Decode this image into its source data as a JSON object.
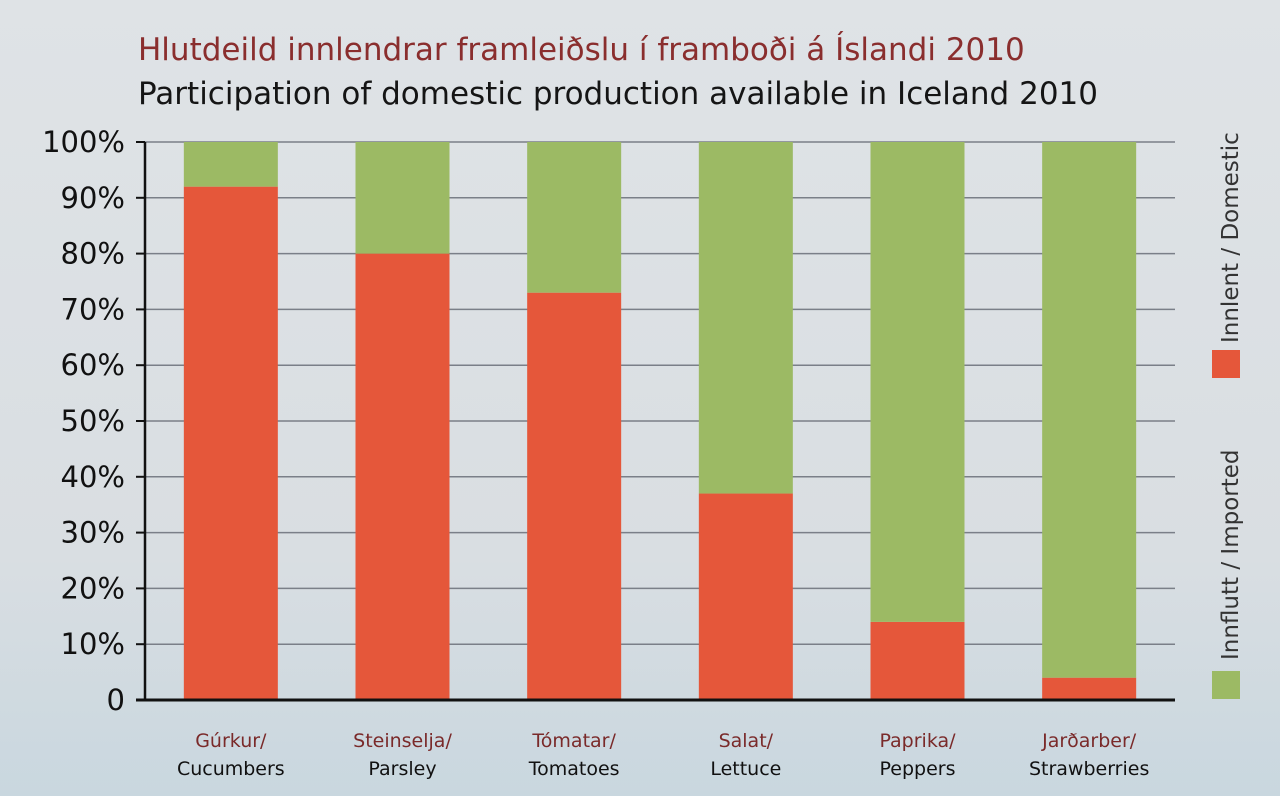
{
  "colors": {
    "domestic": "#e5573a",
    "imported": "#9cba64",
    "title_primary": "#8a2e2e",
    "title_secondary": "#151515",
    "category_primary": "#7a2a2a",
    "grid": "#7a7f88"
  },
  "chart_data": {
    "type": "bar",
    "stacked": true,
    "title": "Hlutdeild innlendrar framleiðslu í framboði á Íslandi 2010",
    "subtitle": "Participation of domestic production available in Iceland 2010",
    "categories": [
      [
        "Gúrkur/",
        "Cucumbers"
      ],
      [
        "Steinselja/",
        "Parsley"
      ],
      [
        "Tómatar/",
        "Tomatoes"
      ],
      [
        "Salat/",
        "Lettuce"
      ],
      [
        "Paprika/",
        "Peppers"
      ],
      [
        "Jarðarber/",
        "Strawberries"
      ]
    ],
    "series": [
      {
        "name": "Innlent / Domestic",
        "values": [
          92,
          80,
          73,
          37,
          14,
          4
        ]
      },
      {
        "name": "Innflutt / Imported",
        "values": [
          8,
          20,
          27,
          63,
          86,
          96
        ]
      }
    ],
    "ylim": [
      0,
      100
    ],
    "yticks": [
      "0",
      "10%",
      "20%",
      "30%",
      "40%",
      "50%",
      "60%",
      "70%",
      "80%",
      "90%",
      "100%"
    ],
    "grid": true,
    "legend_position": "right, vertical"
  }
}
